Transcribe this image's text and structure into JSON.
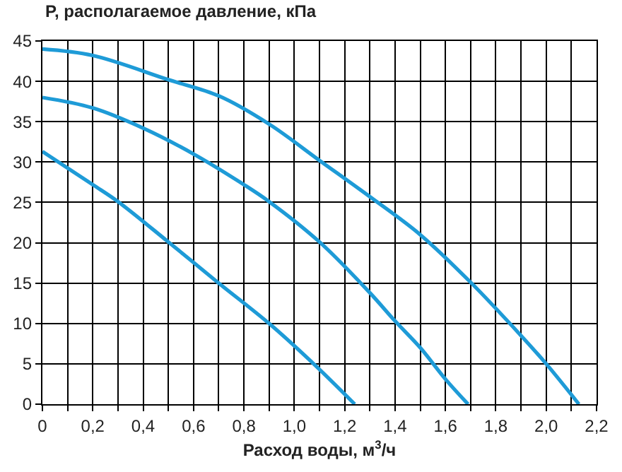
{
  "chart_data": {
    "type": "line",
    "ylabel": "P, располагаемое давление, кПа",
    "xlabel": "Расход воды, м$^{3}$/ч",
    "series": [
      {
        "color": "#1e9bd7",
        "x": [
          0,
          0.2,
          0.5,
          0.7,
          0.9,
          1.1,
          1.3,
          1.5,
          1.7,
          1.9,
          2.0,
          2.13
        ],
        "values": [
          44,
          43.2,
          40.2,
          38.2,
          34.7,
          30.2,
          25.7,
          21,
          15.1,
          8.5,
          5,
          0
        ]
      },
      {
        "color": "#1e9bd7",
        "x": [
          0,
          0.2,
          0.4,
          0.6,
          0.8,
          0.9,
          1.1,
          1.3,
          1.4,
          1.5,
          1.6,
          1.69
        ],
        "values": [
          38,
          36.7,
          34.2,
          31,
          27.2,
          25.1,
          20.1,
          13.8,
          10.3,
          7,
          3.1,
          0
        ]
      },
      {
        "color": "#1e9bd7",
        "x": [
          0,
          0.2,
          0.3,
          0.5,
          0.7,
          0.9,
          1.07,
          1.24
        ],
        "values": [
          31.3,
          27.2,
          25.1,
          20.1,
          15,
          10,
          5.2,
          0
        ]
      }
    ],
    "xlim": [
      0,
      2.2
    ],
    "xticks": [
      0,
      {
        "value": 0.1,
        "label": null
      },
      {
        "value": 0.2,
        "label": "0,2"
      },
      {
        "value": 0.3,
        "label": null
      },
      {
        "value": 0.4,
        "label": "0,4"
      },
      {
        "value": 0.5,
        "label": null
      },
      {
        "value": 0.6,
        "label": "0,6"
      },
      {
        "value": 0.7,
        "label": null
      },
      {
        "value": 0.8,
        "label": "0,8"
      },
      {
        "value": 0.9,
        "label": null
      },
      {
        "value": 1.0,
        "label": "1,0"
      },
      {
        "value": 1.1,
        "label": null
      },
      {
        "value": 1.2,
        "label": "1,2"
      },
      {
        "value": 1.3,
        "label": null
      },
      {
        "value": 1.4,
        "label": "1,4"
      },
      {
        "value": 1.5,
        "label": null
      },
      {
        "value": 1.6,
        "label": "1,6"
      },
      {
        "value": 1.7,
        "label": null
      },
      {
        "value": 1.8,
        "label": "1,8"
      },
      {
        "value": 1.9,
        "label": null
      },
      {
        "value": 2.0,
        "label": "2,0"
      },
      {
        "value": 2.1,
        "label": null
      },
      {
        "value": 2.2,
        "label": "2,2"
      }
    ],
    "ylim": [
      0,
      45
    ],
    "yticks": [
      0,
      5,
      10,
      15,
      20,
      25,
      30,
      35,
      40,
      45
    ],
    "grid": true,
    "marker": "none",
    "line_style": "solid"
  }
}
